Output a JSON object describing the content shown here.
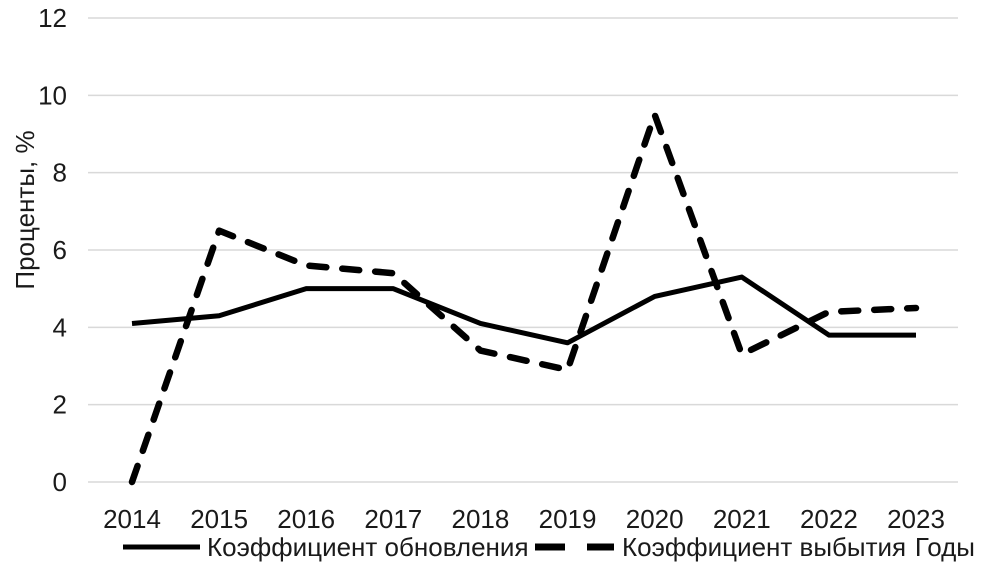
{
  "chart_data": {
    "type": "line",
    "title": "",
    "xlabel": "Годы",
    "ylabel": "Проценты, %",
    "x": [
      "2014",
      "2015",
      "2016",
      "2017",
      "2018",
      "2019",
      "2020",
      "2021",
      "2022",
      "2023"
    ],
    "ylim": [
      0,
      12
    ],
    "yticks": [
      0,
      2,
      4,
      6,
      8,
      10,
      12
    ],
    "grid": "horizontal",
    "legend_position": "bottom",
    "series": [
      {
        "name": "Коэффициент обновления",
        "style": "solid",
        "color": "#000000",
        "values": [
          4.1,
          4.3,
          5.0,
          5.0,
          4.1,
          3.6,
          4.8,
          5.3,
          3.8,
          3.8
        ]
      },
      {
        "name": "Коэффициент выбытия",
        "style": "dashed",
        "color": "#000000",
        "values": [
          0,
          6.5,
          5.6,
          5.4,
          3.4,
          2.9,
          9.5,
          3.3,
          4.4,
          4.5
        ]
      }
    ],
    "colors": {
      "grid": "#d9d9d9",
      "text": "#1a1a1a",
      "background": "#ffffff"
    }
  }
}
